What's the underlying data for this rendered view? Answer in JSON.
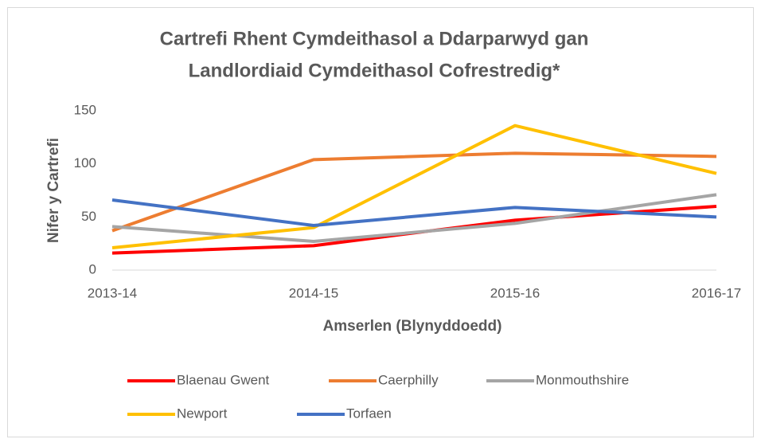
{
  "chart_data": {
    "type": "line",
    "title": [
      "Cartrefi Rhent Cymdeithasol a Ddarparwyd gan",
      "Landlordiaid Cymdeithasol Cofrestredig*"
    ],
    "x_label": "Amserlen (Blynyddoedd)",
    "y_label": "Nifer y Cartrefi",
    "categories": [
      "2013-14",
      "2014-15",
      "2015-16",
      "2016-17"
    ],
    "series": [
      {
        "name": "Blaenau Gwent",
        "color": "#ff0000",
        "values": [
          16,
          23,
          47,
          60
        ]
      },
      {
        "name": "Caerphilly",
        "color": "#ed7d31",
        "values": [
          37,
          104,
          110,
          107
        ]
      },
      {
        "name": "Monmouthshire",
        "color": "#a5a5a5",
        "values": [
          41,
          27,
          44,
          71
        ]
      },
      {
        "name": "Newport",
        "color": "#ffc000",
        "values": [
          21,
          40,
          136,
          91
        ]
      },
      {
        "name": "Torfaen",
        "color": "#4472c4",
        "values": [
          66,
          42,
          59,
          50
        ]
      }
    ],
    "ylim": [
      0,
      150
    ],
    "yticks": [
      0,
      50,
      100,
      150
    ],
    "grid": false,
    "legend": "bottom"
  }
}
